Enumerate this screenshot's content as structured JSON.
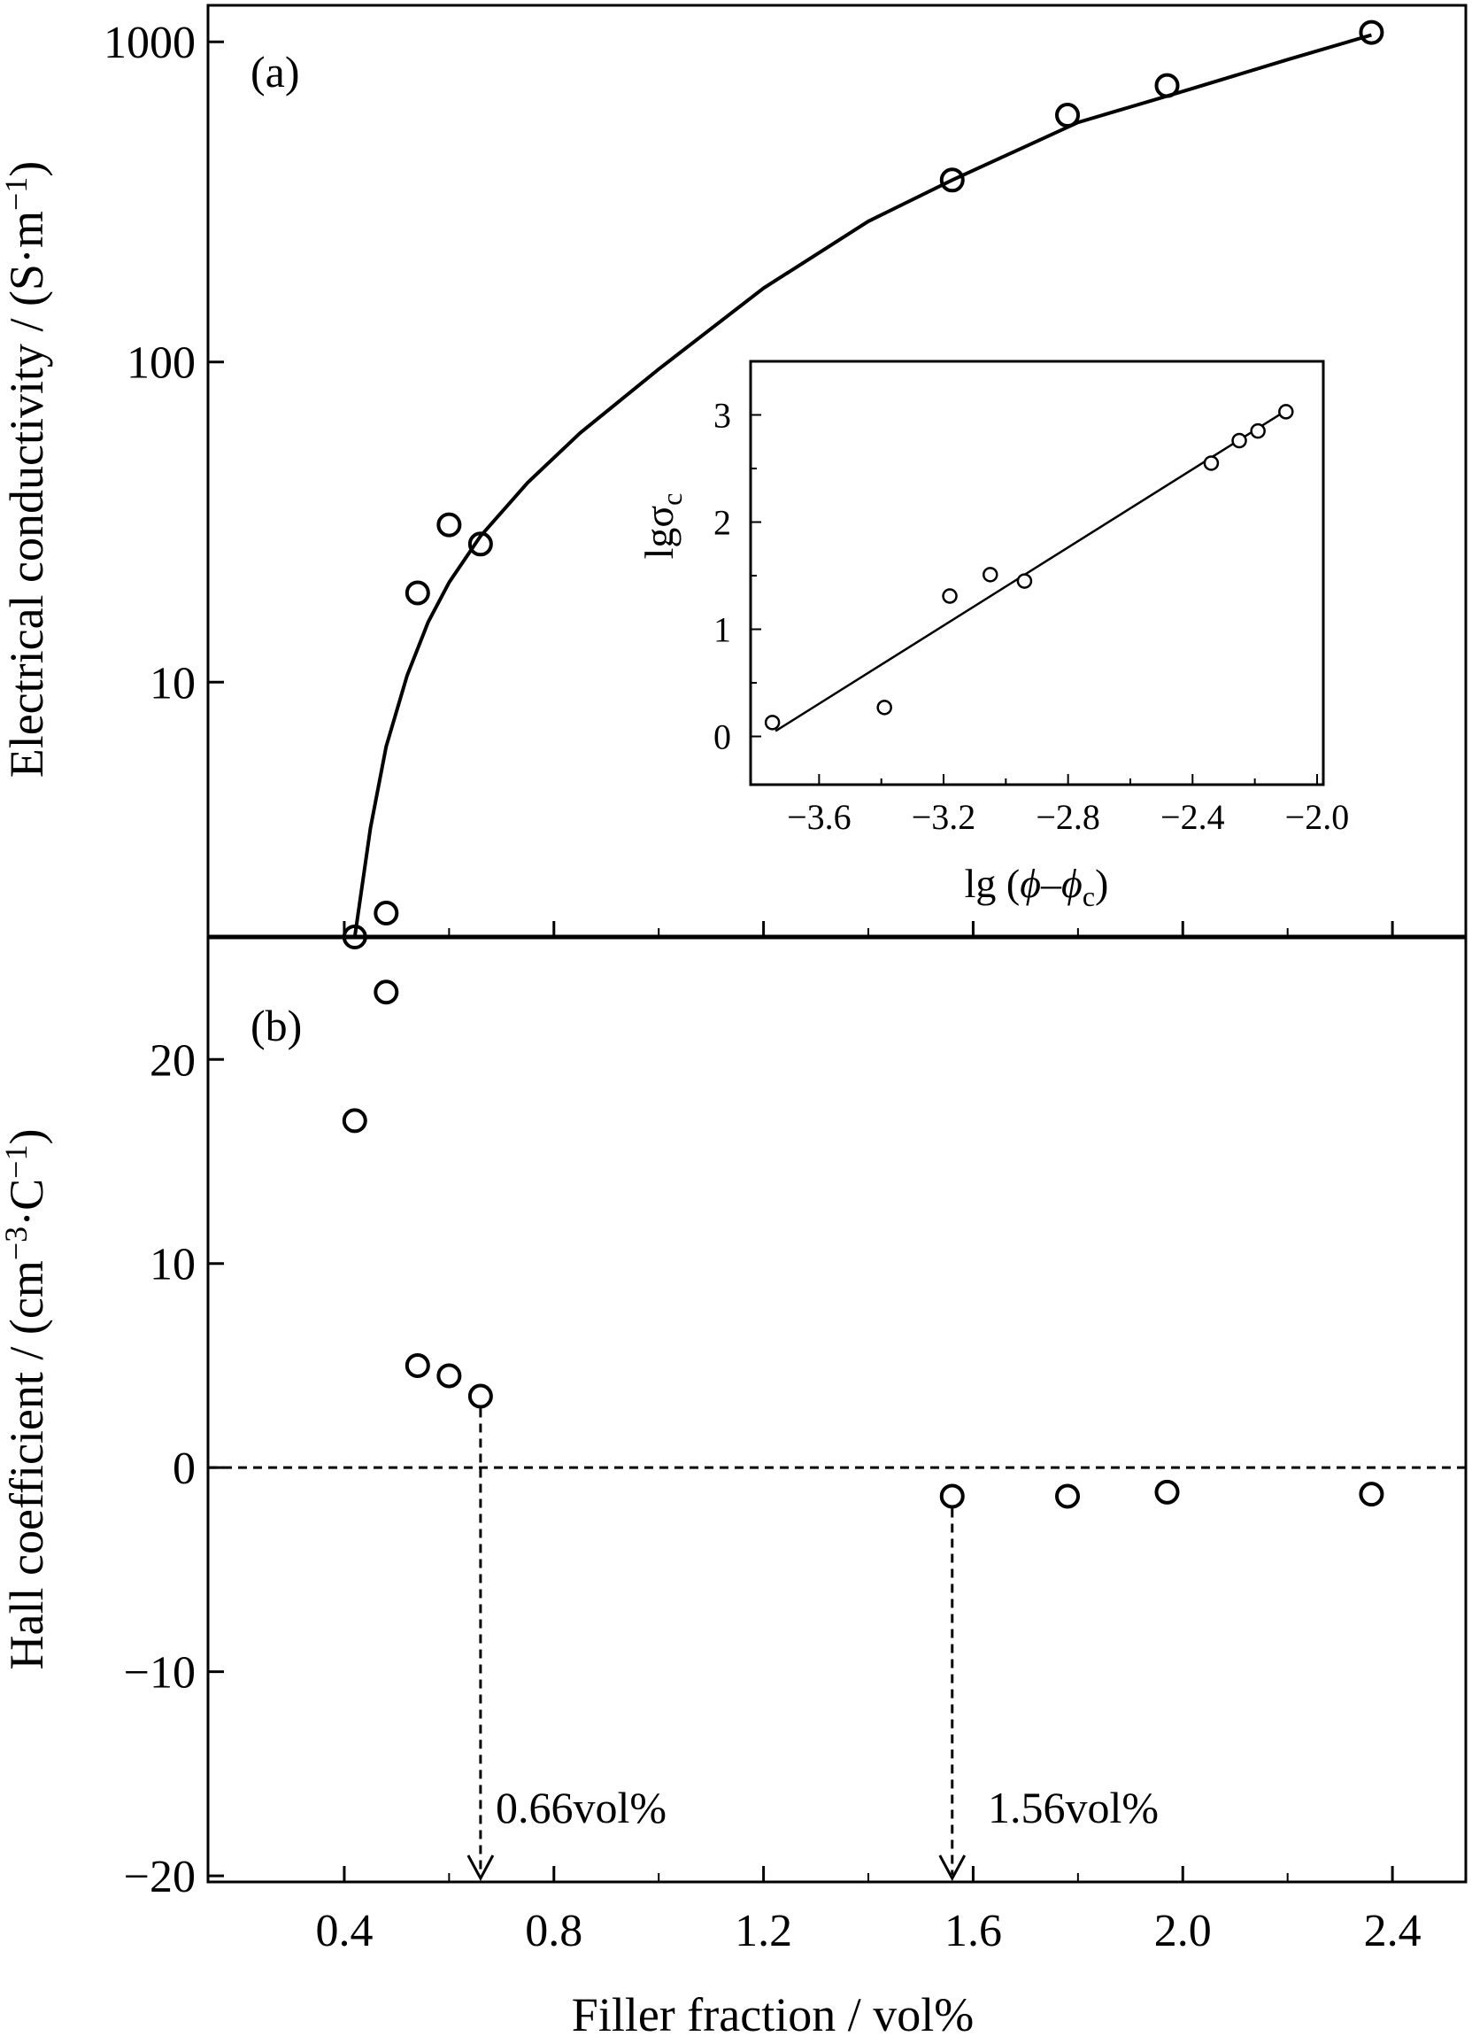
{
  "chart_data": [
    {
      "panel": "(a)",
      "type": "scatter",
      "scale": "log",
      "ylabel_main": "Electrical conductivity / (S·m",
      "ylabel_sup": "−1",
      "ylabel_close": ")",
      "yticks": [
        10,
        100,
        1000
      ],
      "ytick_labels": [
        "10",
        "100",
        "1000"
      ],
      "ylim": [
        1.6,
        1300
      ],
      "x": [
        0.42,
        0.48,
        0.54,
        0.6,
        0.66,
        1.56,
        1.78,
        1.97,
        2.36
      ],
      "y": [
        1.6,
        1.9,
        19,
        31,
        27,
        370,
        590,
        730,
        1070
      ],
      "fit_curve": {
        "x": [
          0.42,
          0.45,
          0.48,
          0.52,
          0.56,
          0.6,
          0.66,
          0.75,
          0.85,
          1.0,
          1.2,
          1.4,
          1.56,
          1.8,
          2.0,
          2.2,
          2.36
        ],
        "y": [
          1.6,
          3.5,
          6.3,
          10.5,
          15.4,
          20.5,
          28.6,
          42,
          60,
          95,
          170,
          275,
          370,
          560,
          700,
          880,
          1050
        ]
      }
    },
    {
      "panel": "(b)",
      "type": "scatter",
      "ylabel_main": "Hall coefficient / (cm",
      "ylabel_sup1": "−3",
      "ylabel_mid": "·C",
      "ylabel_sup2": "−1",
      "ylabel_close": ")",
      "yticks": [
        -20,
        -10,
        0,
        10,
        20
      ],
      "ytick_labels": [
        "−20",
        "−10",
        "0",
        "10",
        "20"
      ],
      "ylim": [
        -20.3,
        26
      ],
      "x": [
        0.42,
        0.48,
        0.54,
        0.6,
        0.66,
        1.56,
        1.78,
        1.97,
        2.36
      ],
      "y": [
        17,
        23.3,
        5,
        4.5,
        3.5,
        -1.4,
        -1.4,
        -1.2,
        -1.3
      ],
      "reference_line_y": 0,
      "annotations": [
        {
          "x": 0.66,
          "y_from": 3.5,
          "text": "0.66vol%"
        },
        {
          "x": 1.56,
          "y_from": -1.4,
          "text": "1.56vol%"
        }
      ]
    },
    {
      "panel": "inset",
      "type": "scatter",
      "xlabel_pre": "lg (",
      "xlabel_phi1": "ϕ",
      "xlabel_dash": "–",
      "xlabel_phi2": "ϕ",
      "xlabel_sub": "c",
      "xlabel_close": ")",
      "ylabel_main": "lgσ",
      "ylabel_sub": "c",
      "xlim": [
        -3.82,
        -1.98
      ],
      "ylim": [
        -0.45,
        3.5
      ],
      "xticks": [
        -3.6,
        -3.2,
        -2.8,
        -2.4,
        -2.0
      ],
      "xtick_labels": [
        "−3.6",
        "−3.2",
        "−2.8",
        "−2.4",
        "−2.0"
      ],
      "yticks": [
        0,
        1,
        2,
        3
      ],
      "ytick_labels": [
        "0",
        "1",
        "2",
        "3"
      ],
      "x": [
        -3.75,
        -3.39,
        -3.18,
        -3.05,
        -2.94,
        -2.34,
        -2.25,
        -2.19,
        -2.1
      ],
      "y": [
        0.13,
        0.27,
        1.31,
        1.51,
        1.45,
        2.55,
        2.76,
        2.85,
        3.03
      ],
      "fit_line": {
        "x": [
          -3.74,
          -2.1
        ],
        "y": [
          0.05,
          3.04
        ]
      }
    }
  ],
  "xaxis": {
    "xlabel": "Filler fraction / vol%",
    "xlim": [
      0.14,
      2.54
    ],
    "xticks": [
      0.4,
      0.8,
      1.2,
      1.6,
      2.0,
      2.4
    ],
    "xtick_labels": [
      "0.4",
      "0.8",
      "1.2",
      "1.6",
      "2.0",
      "2.4"
    ]
  }
}
